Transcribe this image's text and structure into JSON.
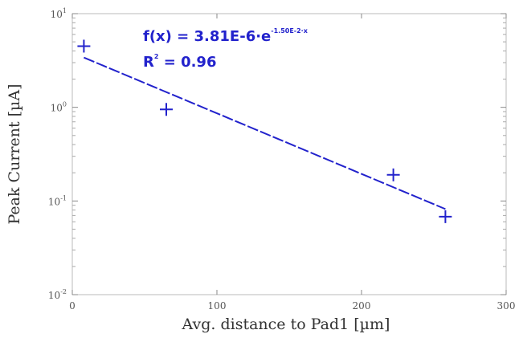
{
  "chart_data": {
    "type": "scatter",
    "xlabel": "Avg. distance to Pad1 [µm]",
    "ylabel": "Peak Current [µA]",
    "xlim": [
      0,
      300
    ],
    "ylim": [
      0.01,
      10
    ],
    "yscale": "log",
    "x_ticks": [
      0,
      100,
      200,
      300
    ],
    "x_tick_labels": [
      "0",
      "100",
      "200",
      "300"
    ],
    "y_ticks": [
      10,
      1,
      0.1,
      0.01
    ],
    "y_tick_label_bases": [
      "10",
      "10",
      "10",
      "10"
    ],
    "y_tick_label_exponents": [
      "1",
      "0",
      "-1",
      "-2"
    ],
    "grid": false,
    "series": [
      {
        "x": [
          8,
          65,
          222,
          258
        ],
        "y": [
          4.5,
          0.95,
          0.19,
          0.068
        ],
        "marker": "plus",
        "color": "#2222cc"
      }
    ],
    "fit": {
      "model": "exponential",
      "x_range": [
        8,
        258
      ],
      "y_range": [
        3.4,
        0.082
      ],
      "color": "#2222cc",
      "style": "dashed"
    },
    "annotation": {
      "equation_prefix": "f(x) = 3.81E-6·e",
      "equation_exponent": "-1.50E-2·x",
      "r2_label": "R",
      "r2_exponent": "2",
      "r2_value": " = 0.96"
    }
  }
}
